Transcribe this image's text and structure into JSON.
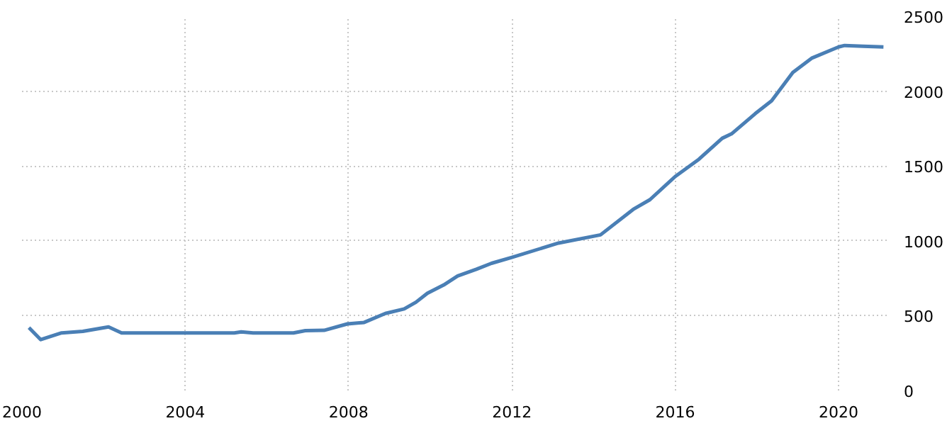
{
  "chart_data": {
    "type": "line",
    "x": [
      2000.17,
      2000.46,
      2000.97,
      2001.49,
      2002.12,
      2002.44,
      2004.07,
      2005.2,
      2005.37,
      2005.66,
      2006.65,
      2006.94,
      2007.4,
      2007.97,
      2008.38,
      2008.9,
      2009.36,
      2009.65,
      2009.93,
      2010.33,
      2010.67,
      2011.13,
      2011.5,
      2012.0,
      2013.14,
      2014.17,
      2014.97,
      2015.38,
      2016.0,
      2016.58,
      2017.15,
      2017.38,
      2017.96,
      2018.36,
      2018.88,
      2019.34,
      2020.0,
      2020.15,
      2020.6,
      2021.1
    ],
    "series": [
      {
        "color": "#4a7fb5",
        "values": [
          420,
          340,
          385,
          395,
          425,
          385,
          385,
          385,
          392,
          385,
          385,
          400,
          402,
          445,
          455,
          515,
          545,
          590,
          650,
          705,
          765,
          810,
          850,
          890,
          985,
          1040,
          1210,
          1275,
          1430,
          1545,
          1685,
          1715,
          1850,
          1935,
          2125,
          2220,
          2295,
          2305,
          2300,
          2295
        ]
      }
    ],
    "xlim": [
      2000,
      2021.25
    ],
    "xticks": [
      2000,
      2004,
      2008,
      2012,
      2016,
      2020
    ],
    "ylim": [
      0,
      2500
    ],
    "yticks": [
      0,
      500,
      1000,
      1500,
      2000,
      2500
    ],
    "grid": true,
    "line_style": "solid",
    "marker": "none"
  }
}
